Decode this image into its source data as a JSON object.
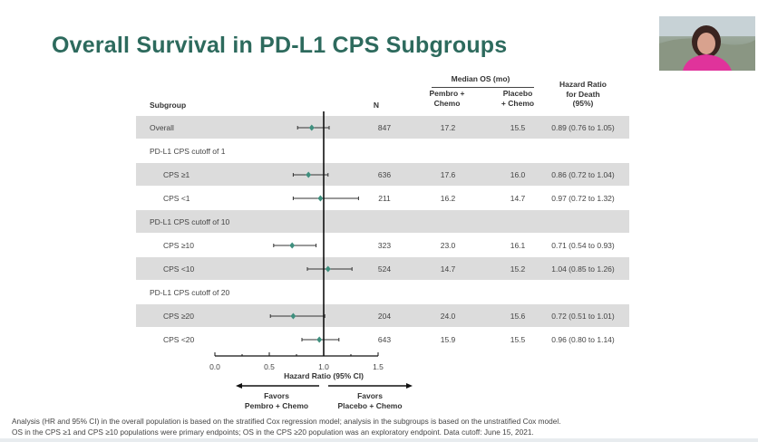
{
  "slide": {
    "title": "Overall Survival in PD-L1 CPS Subgroups",
    "footer": [
      "Analysis (HR and 95% CI) in the overall population is based on the stratified Cox regression model; analysis in the subgroups is based on the unstratified Cox model.",
      "OS in the CPS ≥1 and CPS ≥10 populations were primary endpoints; OS in the CPS ≥20 population was an exploratory endpoint. Data cutoff: June 15, 2021."
    ]
  },
  "table_headers": {
    "subgroup": "Subgroup",
    "n": "N",
    "median_os": "Median OS (mo)",
    "pembro": [
      "Pembro +",
      "Chemo"
    ],
    "placebo": [
      "Placebo",
      "+ Chemo"
    ],
    "hr": [
      "Hazard Ratio",
      "for Death",
      "(95%)"
    ]
  },
  "colors": {
    "title": "#2d6a5d",
    "marker": "#3f8f7e",
    "band": "#dcdcdc"
  },
  "chart_data": {
    "type": "forest",
    "xlabel": "Hazard Ratio (95% CI)",
    "xlim": [
      0.0,
      1.5
    ],
    "xticks": [
      "0.0",
      "0.5",
      "1.0",
      "1.5"
    ],
    "reference_line": 1.0,
    "favors_left": [
      "Favors",
      "Pembro + Chemo"
    ],
    "favors_right": [
      "Favors",
      "Placebo + Chemo"
    ],
    "rows": [
      {
        "label": "Overall",
        "kind": "row",
        "indent": false,
        "n": "847",
        "pembro": "17.2",
        "placebo": "15.5",
        "hr_text": "0.89 (0.76 to 1.05)",
        "hr": 0.89,
        "lo": 0.76,
        "hi": 1.05
      },
      {
        "label": "PD-L1 CPS cutoff of 1",
        "kind": "group"
      },
      {
        "label": "CPS ≥1",
        "kind": "row",
        "indent": true,
        "n": "636",
        "pembro": "17.6",
        "placebo": "16.0",
        "hr_text": "0.86 (0.72 to 1.04)",
        "hr": 0.86,
        "lo": 0.72,
        "hi": 1.04
      },
      {
        "label": "CPS <1",
        "kind": "row",
        "indent": true,
        "n": "211",
        "pembro": "16.2",
        "placebo": "14.7",
        "hr_text": "0.97 (0.72 to 1.32)",
        "hr": 0.97,
        "lo": 0.72,
        "hi": 1.32
      },
      {
        "label": "PD-L1 CPS cutoff of 10",
        "kind": "group"
      },
      {
        "label": "CPS ≥10",
        "kind": "row",
        "indent": true,
        "n": "323",
        "pembro": "23.0",
        "placebo": "16.1",
        "hr_text": "0.71 (0.54 to 0.93)",
        "hr": 0.71,
        "lo": 0.54,
        "hi": 0.93
      },
      {
        "label": "CPS <10",
        "kind": "row",
        "indent": true,
        "n": "524",
        "pembro": "14.7",
        "placebo": "15.2",
        "hr_text": "1.04 (0.85 to 1.26)",
        "hr": 1.04,
        "lo": 0.85,
        "hi": 1.26
      },
      {
        "label": "PD-L1 CPS cutoff of 20",
        "kind": "group"
      },
      {
        "label": "CPS ≥20",
        "kind": "row",
        "indent": true,
        "n": "204",
        "pembro": "24.0",
        "placebo": "15.6",
        "hr_text": "0.72 (0.51 to 1.01)",
        "hr": 0.72,
        "lo": 0.51,
        "hi": 1.01
      },
      {
        "label": "CPS <20",
        "kind": "row",
        "indent": true,
        "n": "643",
        "pembro": "15.9",
        "placebo": "15.5",
        "hr_text": "0.96 (0.80 to 1.14)",
        "hr": 0.96,
        "lo": 0.8,
        "hi": 1.14
      }
    ]
  }
}
